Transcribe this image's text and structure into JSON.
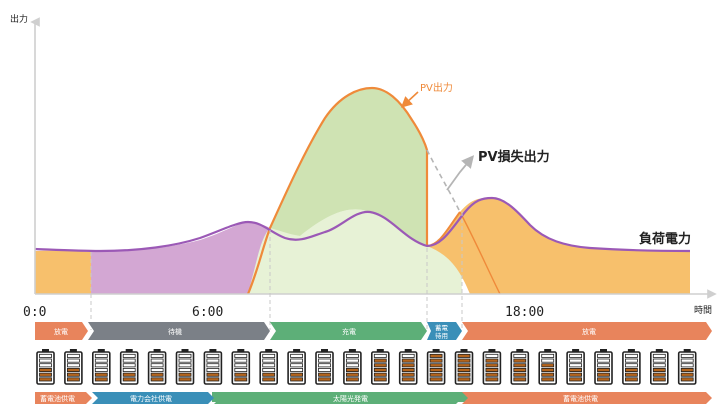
{
  "axes": {
    "y_label": "出力",
    "x_label": "時間",
    "ticks": [
      "0:0",
      "6:00",
      "18:00"
    ]
  },
  "callouts": {
    "pv_output": "PV出力",
    "pv_loss": "PV損失出力",
    "load_power": "負荷電力"
  },
  "phases": [
    {
      "label": "放電",
      "color": "#e8845c"
    },
    {
      "label": "待機",
      "color": "#7b8087"
    },
    {
      "label": "充電",
      "color": "#5daf78"
    },
    {
      "label": "蓄電\n待用",
      "color": "#3a8fb8"
    },
    {
      "label": "放電",
      "color": "#e8845c"
    }
  ],
  "sources": [
    {
      "label": "蓄電池供電",
      "color": "#e8845c"
    },
    {
      "label": "電力会社供電",
      "color": "#3a8fb8"
    },
    {
      "label": "太陽光発電",
      "color": "#5daf78"
    },
    {
      "label": "蓄電池供電",
      "color": "#e8845c"
    }
  ],
  "battery_levels": [
    0.45,
    0.45,
    0.3,
    0.3,
    0.3,
    0.3,
    0.3,
    0.3,
    0.3,
    0.3,
    0.4,
    0.55,
    0.75,
    0.9,
    1.0,
    1.0,
    0.85,
    0.75,
    0.65,
    0.55,
    0.45,
    0.45,
    0.45,
    0.45
  ],
  "colors": {
    "pv_line": "#ef8a3a",
    "load_line": "#9b59b6",
    "discharge_fill": "#f7c06c",
    "grid_fill": "#d3a7d3",
    "pv_fill": "#cfe3b3",
    "pv_light_fill": "#e7f2d6",
    "battery_fill": "#b5651d"
  }
}
